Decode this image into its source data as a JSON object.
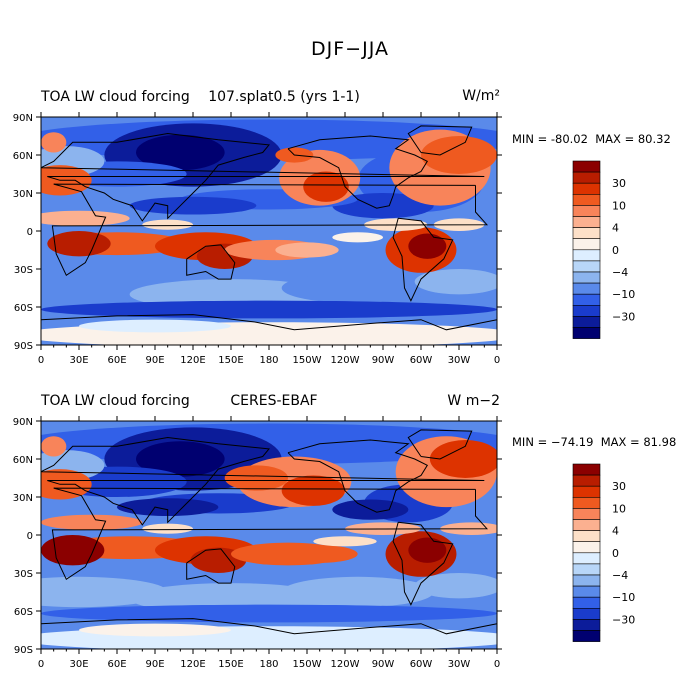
{
  "main_title": "DJF−JJA",
  "panels": [
    {
      "left_title": "TOA LW cloud forcing",
      "center_title": "107.splat0.5 (yrs 1-1)",
      "units": "W/m²",
      "min_label": "MIN = -80.02",
      "max_label": "MAX =  80.32"
    },
    {
      "left_title": "TOA LW cloud forcing",
      "center_title": "CERES-EBAF",
      "units": "W m−2",
      "min_label": "MIN = −74.19",
      "max_label": "MAX =  81.98"
    }
  ],
  "colorbar": {
    "labels": [
      "30",
      "10",
      "4",
      "0",
      "−4",
      "−10",
      "−30"
    ],
    "colors": [
      "#8b0000",
      "#b81d00",
      "#dd3300",
      "#ef5a20",
      "#f8845a",
      "#fbb090",
      "#fde0c8",
      "#fbf2ea",
      "#ddeeff",
      "#b8d6f8",
      "#8cb4ee",
      "#5a8aea",
      "#3260e8",
      "#1a3ccc",
      "#0c1c9a",
      "#000070"
    ]
  },
  "chart_data": [
    {
      "type": "heatmap",
      "title": "TOA LW cloud forcing 107.splat0.5 (yrs 1-1)",
      "units": "W/m²",
      "x_ticks": [
        "0",
        "30E",
        "60E",
        "90E",
        "120E",
        "150E",
        "180",
        "150W",
        "120W",
        "90W",
        "60W",
        "30W",
        "0"
      ],
      "y_ticks": [
        "90N",
        "60N",
        "30N",
        "0",
        "30S",
        "60S",
        "90S"
      ],
      "min": -80.02,
      "max": 80.32,
      "levels": [
        30,
        10,
        4,
        0,
        -4,
        -10,
        -30
      ]
    },
    {
      "type": "heatmap",
      "title": "TOA LW cloud forcing CERES-EBAF",
      "units": "W m-2",
      "x_ticks": [
        "0",
        "30E",
        "60E",
        "90E",
        "120E",
        "150E",
        "180",
        "150W",
        "120W",
        "90W",
        "60W",
        "30W",
        "0"
      ],
      "y_ticks": [
        "90N",
        "60N",
        "30N",
        "0",
        "30S",
        "60S",
        "90S"
      ],
      "min": -74.19,
      "max": 81.98,
      "levels": [
        30,
        10,
        4,
        0,
        -4,
        -10,
        -30
      ]
    }
  ]
}
